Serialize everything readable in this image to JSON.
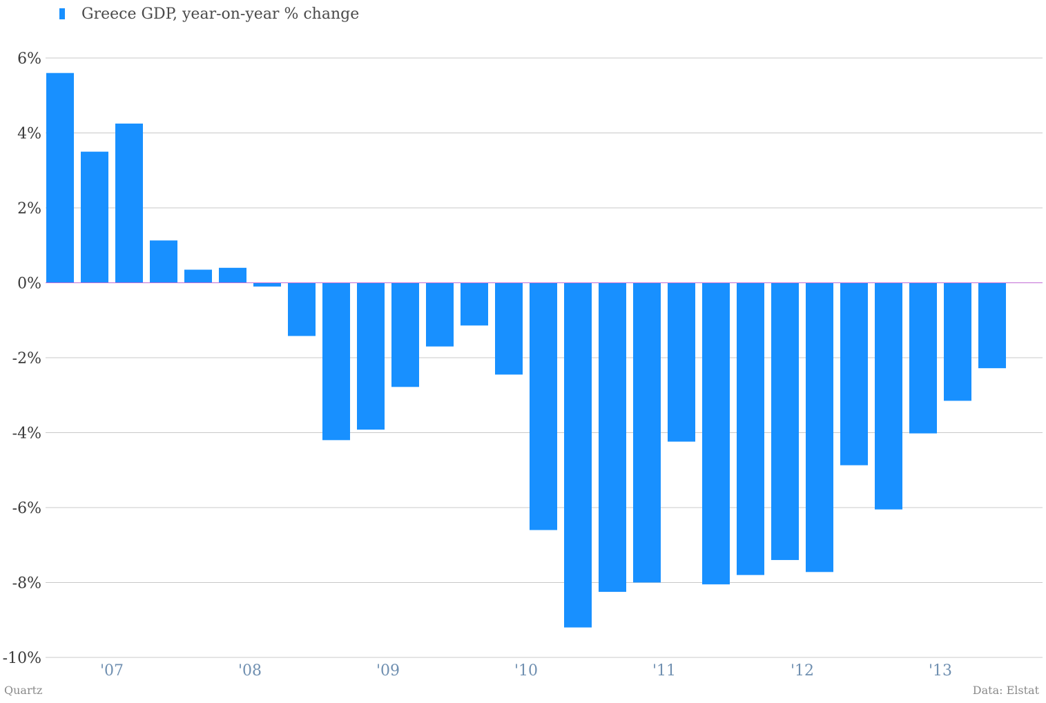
{
  "chart_data": {
    "type": "bar",
    "series": [
      {
        "name": "Greece GDP, year-on-year % change",
        "values": [
          5.6,
          3.5,
          4.25,
          1.13,
          0.35,
          0.4,
          -0.1,
          -1.42,
          -4.2,
          -3.92,
          -2.78,
          -1.7,
          -1.14,
          -2.45,
          -6.6,
          -9.2,
          -8.25,
          -8.0,
          -4.24,
          -8.05,
          -7.8,
          -7.4,
          -7.72,
          -4.87,
          -6.05,
          -4.02,
          -3.15,
          -2.28
        ]
      }
    ],
    "x_tick_labels": [
      "'07",
      "'08",
      "'09",
      "'10",
      "'11",
      "'12",
      "'13"
    ],
    "x_tick_bar_index": [
      1.5,
      5.5,
      9.5,
      13.5,
      17.5,
      21.5,
      25.5
    ],
    "y_ticks": [
      6,
      4,
      2,
      0,
      -2,
      -4,
      -6,
      -8,
      -10
    ],
    "y_tick_labels": [
      "6%",
      "4%",
      "2%",
      "0%",
      "-2%",
      "-4%",
      "-6%",
      "-8%",
      "-10%"
    ],
    "ylim": [
      -10,
      6
    ],
    "grid": true,
    "legend_position": "top-left",
    "colors": {
      "bar": "#1890ff",
      "zero_line": "#c36dd6",
      "grid": "#c8c8c8",
      "tick_x": "#6f8fb0",
      "tick_y": "#3a3a3a"
    }
  },
  "footer": {
    "source_left": "Quartz",
    "source_right": "Data: Elstat"
  }
}
